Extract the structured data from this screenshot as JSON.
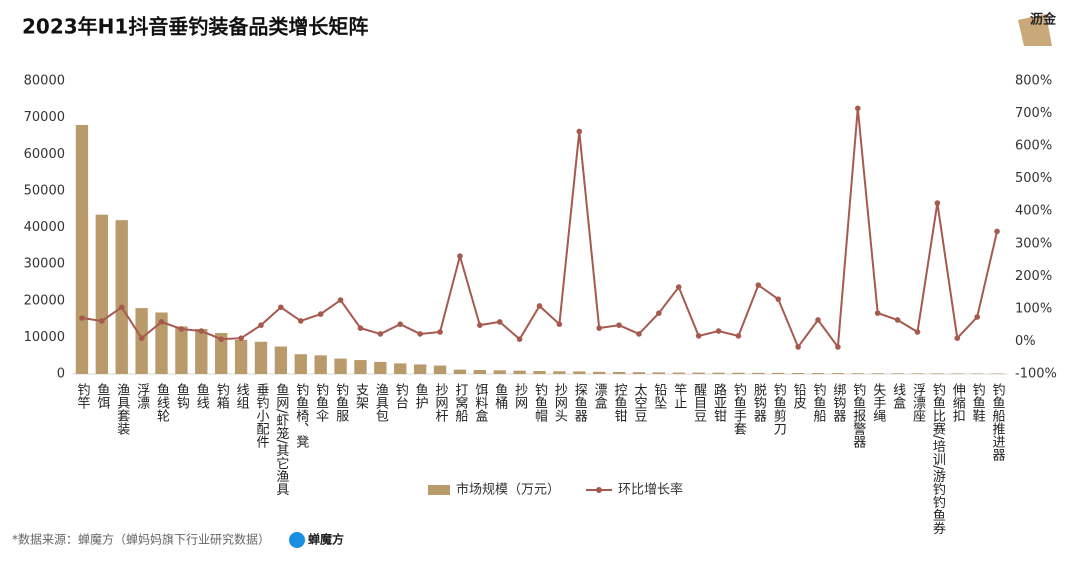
{
  "chart_data": {
    "type": "bar_line",
    "title": "2023年H1抖音垂钓装备品类增长矩阵",
    "logo": "沥金",
    "source": "*数据来源：蝉魔方（蝉妈妈旗下行业研究数据）",
    "source_brand": "蝉魔方",
    "categories": [
      "钓竿",
      "鱼饵",
      "渔具套装",
      "浮漂",
      "鱼线轮",
      "鱼钩",
      "鱼线",
      "钓箱",
      "线组",
      "垂钓小配件",
      "鱼网/虾笼/其它渔具",
      "钓鱼椅、凳",
      "钓鱼伞",
      "钓鱼服",
      "支架",
      "渔具包",
      "钓台",
      "鱼护",
      "抄网杆",
      "打窝船",
      "饵料盒",
      "鱼桶",
      "抄网",
      "钓鱼帽",
      "抄网头",
      "探鱼器",
      "漂盒",
      "控鱼钳",
      "太空豆",
      "铅坠",
      "竿止",
      "醒目豆",
      "路亚钳",
      "钓鱼手套",
      "脱钩器",
      "钓鱼剪刀",
      "铅皮",
      "钓鱼船",
      "绑钩器",
      "钓鱼报警器",
      "失手绳",
      "线盒",
      "浮漂座",
      "钓鱼比赛/培训/游钓钓鱼券",
      "伸缩扣",
      "钓鱼鞋",
      "钓鱼船推进器"
    ],
    "series": [
      {
        "name": "市场规模（万元）",
        "type": "bar",
        "color": "#b99a6b",
        "values": [
          68000,
          43500,
          42000,
          18000,
          16800,
          13000,
          12300,
          11200,
          9300,
          8800,
          7500,
          5400,
          5100,
          4200,
          3800,
          3300,
          2900,
          2600,
          2300,
          1200,
          1100,
          1000,
          900,
          800,
          750,
          700,
          600,
          550,
          500,
          450,
          400,
          380,
          360,
          340,
          320,
          300,
          280,
          260,
          240,
          220,
          200,
          190,
          180,
          170,
          160,
          150,
          140
        ]
      },
      {
        "name": "环比增长率",
        "type": "line",
        "axis": "y2",
        "color": "#a65a4e",
        "values": [
          72,
          63,
          105,
          10,
          60,
          38,
          32,
          7,
          10,
          50,
          105,
          63,
          84,
          127,
          41,
          23,
          53,
          23,
          29,
          262,
          50,
          60,
          7,
          109,
          53,
          645,
          41,
          50,
          23,
          87,
          167,
          17,
          32,
          17,
          173,
          130,
          -17,
          66,
          -17,
          716,
          87,
          66,
          29,
          425,
          10,
          75,
          338
        ]
      }
    ],
    "ylim": [
      0,
      80000
    ],
    "yticks": [
      0,
      10000,
      20000,
      30000,
      40000,
      50000,
      60000,
      70000,
      80000
    ],
    "y2lim": [
      -100,
      800
    ],
    "y2ticks": [
      {
        "value": -100,
        "label": "-100%"
      },
      {
        "value": 0,
        "label": "0%"
      },
      {
        "value": 100,
        "label": "100%"
      },
      {
        "value": 200,
        "label": "200%"
      },
      {
        "value": 300,
        "label": "300%"
      },
      {
        "value": 400,
        "label": "400%"
      },
      {
        "value": 500,
        "label": "500%"
      },
      {
        "value": 600,
        "label": "600%"
      },
      {
        "value": 700,
        "label": "700%"
      },
      {
        "value": 800,
        "label": "800%"
      }
    ],
    "grid": false,
    "legend": "bottom"
  }
}
